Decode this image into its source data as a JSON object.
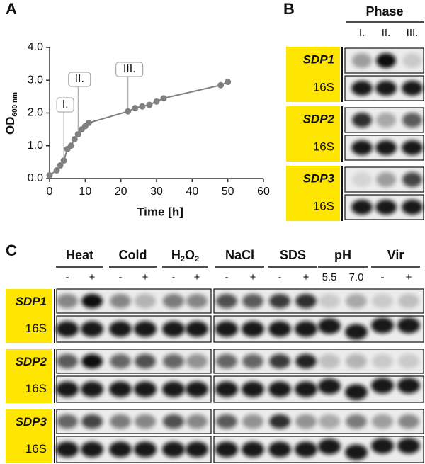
{
  "panel_labels": [
    "A",
    "B",
    "C"
  ],
  "chart_data": {
    "type": "line",
    "x_label": "Time [h]",
    "y_label": {
      "text": "OD",
      "subscript": "600 nm"
    },
    "x": [
      0,
      2,
      3,
      4,
      5,
      6,
      7,
      8,
      9,
      10,
      11,
      22,
      24,
      26,
      28,
      30,
      32,
      48,
      50
    ],
    "values": [
      0.1,
      0.25,
      0.4,
      0.55,
      0.9,
      1.0,
      1.2,
      1.35,
      1.5,
      1.6,
      1.7,
      2.05,
      2.15,
      2.2,
      2.25,
      2.35,
      2.45,
      2.85,
      2.95
    ],
    "color": "#808080",
    "xlim": [
      0,
      60
    ],
    "xticks": [
      0,
      10,
      20,
      30,
      40,
      50,
      60
    ],
    "ylim": [
      0,
      4
    ],
    "yticks": [
      {
        "value": 0,
        "label": "0.0"
      },
      {
        "value": 1,
        "label": "1.0"
      },
      {
        "value": 2,
        "label": "2.0"
      },
      {
        "value": 3,
        "label": "3.0"
      },
      {
        "value": 4,
        "label": "4.0"
      }
    ],
    "annotations": [
      {
        "text": "I.",
        "x": 4
      },
      {
        "text": "II.",
        "x": 8
      },
      {
        "text": "III.",
        "x": 22
      }
    ]
  },
  "phase_blot": {
    "title": "Phase",
    "lanes": [
      "I.",
      "II.",
      "III."
    ],
    "genes": [
      "SDP1",
      "SDP2",
      "SDP3"
    ],
    "reference": "16S"
  },
  "stress_blot": {
    "groups": [
      {
        "label": [
          {
            "text": "Heat"
          }
        ],
        "lanes": [
          "-",
          "+"
        ]
      },
      {
        "label": [
          {
            "text": "Cold"
          }
        ],
        "lanes": [
          "-",
          "+"
        ]
      },
      {
        "label": [
          {
            "text": "H"
          },
          {
            "text": "2",
            "sub": true
          },
          {
            "text": "O"
          },
          {
            "text": "2",
            "sub": true
          }
        ],
        "lanes": [
          "-",
          "+"
        ]
      },
      {
        "label": [
          {
            "text": "NaCl"
          }
        ],
        "lanes": [
          "-",
          "+"
        ]
      },
      {
        "label": [
          {
            "text": "SDS"
          }
        ],
        "lanes": [
          "-",
          "+"
        ]
      },
      {
        "label": [
          {
            "text": "pH"
          }
        ],
        "lanes": [
          "5.5",
          "7.0"
        ]
      },
      {
        "label": [
          {
            "text": "Vir"
          }
        ],
        "lanes": [
          "-",
          "+"
        ]
      }
    ],
    "genes": [
      "SDP1",
      "SDP2",
      "SDP3"
    ],
    "reference": "16S"
  }
}
